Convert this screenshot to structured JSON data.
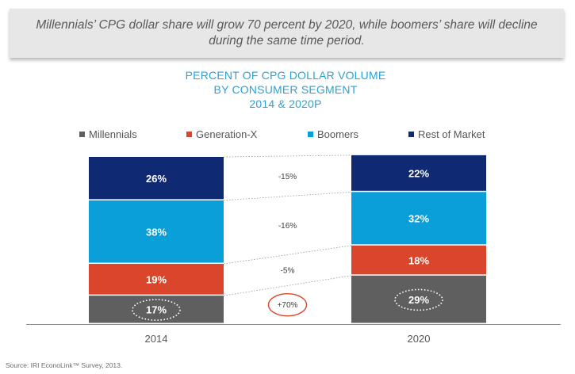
{
  "banner": {
    "text": "Millennials’ CPG dollar share will grow 70 percent  by 2020, while boomers’ share will decline during the same time period."
  },
  "title": {
    "line1": "PERCENT OF CPG DOLLAR VOLUME",
    "line2": "BY CONSUMER SEGMENT",
    "line3": "2014 & 2020P"
  },
  "legend": [
    {
      "label": "Millennials",
      "color": "#5f5f5f"
    },
    {
      "label": "Generation-X",
      "color": "#d9462b"
    },
    {
      "label": "Boomers",
      "color": "#0a9fd8"
    },
    {
      "label": "Rest of Market",
      "color": "#0f2a73"
    }
  ],
  "chart_data": {
    "type": "bar",
    "stacked": true,
    "title": "PERCENT OF CPG DOLLAR VOLUME BY CONSUMER SEGMENT 2014 & 2020P",
    "categories": [
      "2014",
      "2020"
    ],
    "series": [
      {
        "name": "Millennials",
        "values": [
          17,
          29
        ],
        "labels": [
          "17%",
          "29%"
        ],
        "color": "#5f5f5f"
      },
      {
        "name": "Generation-X",
        "values": [
          19,
          18
        ],
        "labels": [
          "19%",
          "18%"
        ],
        "color": "#d9462b"
      },
      {
        "name": "Boomers",
        "values": [
          38,
          32
        ],
        "labels": [
          "38%",
          "32%"
        ],
        "color": "#0a9fd8"
      },
      {
        "name": "Rest of Market",
        "values": [
          26,
          22
        ],
        "labels": [
          "26%",
          "22%"
        ],
        "color": "#0f2a73"
      }
    ],
    "changes": [
      {
        "series": "Millennials",
        "label": "+70%",
        "highlight": true
      },
      {
        "series": "Generation-X",
        "label": "-5%"
      },
      {
        "series": "Boomers",
        "label": "-16%"
      },
      {
        "series": "Rest of Market",
        "label": "-15%"
      }
    ],
    "circled_labels": [
      "17%",
      "29%"
    ],
    "ylim": [
      0,
      100
    ],
    "xlabel": "",
    "ylabel": ""
  },
  "source": "Source: IRI EconoLink™ Survey, 2013."
}
